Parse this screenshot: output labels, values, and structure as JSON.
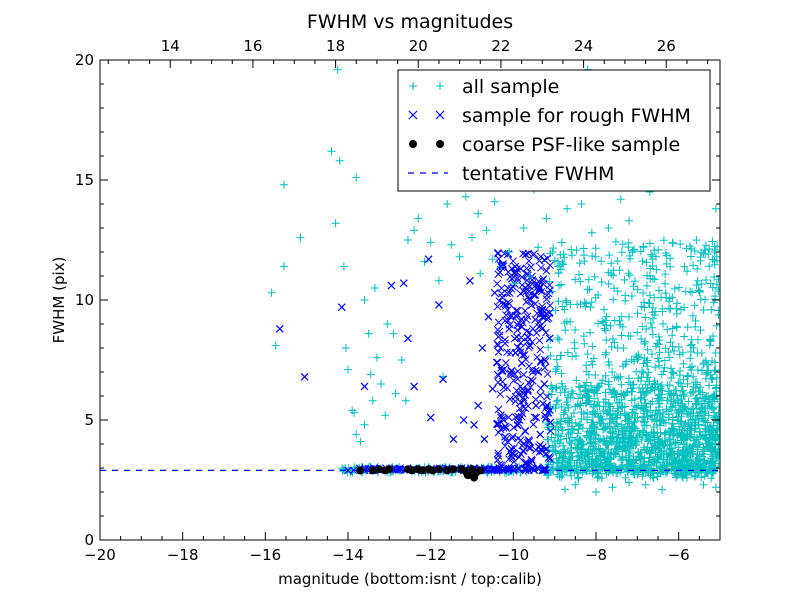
{
  "chart_data": {
    "type": "scatter",
    "title": "FWHM vs magnitudes",
    "xlabel": "magnitude (bottom:isnt / top:calib)",
    "ylabel": "FWHM (pix)",
    "xlim": [
      -20,
      -5
    ],
    "ylim": [
      0,
      20
    ],
    "x_ticks": [
      -20,
      -18,
      -16,
      -14,
      -12,
      -10,
      -8,
      -6
    ],
    "x_tick_labels": [
      "−20",
      "−18",
      "−16",
      "−14",
      "−12",
      "−10",
      "−8",
      "−6"
    ],
    "y_ticks": [
      0,
      5,
      10,
      15,
      20
    ],
    "y_tick_labels": [
      "0",
      "5",
      "10",
      "15",
      "20"
    ],
    "top_axis": {
      "offset": 32.3,
      "ticks": [
        14,
        16,
        18,
        20,
        22,
        24,
        26
      ],
      "tick_labels": [
        "14",
        "16",
        "18",
        "20",
        "22",
        "24",
        "26"
      ]
    },
    "grid": false,
    "legend_position": "top-right",
    "tentative_fwhm": 2.9,
    "series": [
      {
        "name": "all sample",
        "marker": "plus",
        "color": "#00BFBF",
        "points": [
          [
            -15.85,
            10.3
          ],
          [
            -15.75,
            8.1
          ],
          [
            -15.55,
            11.4
          ],
          [
            -15.55,
            14.8
          ],
          [
            -15.15,
            12.6
          ],
          [
            -14.4,
            16.2
          ],
          [
            -14.3,
            13.2
          ],
          [
            -14.25,
            19.6
          ],
          [
            -14.2,
            15.8
          ],
          [
            -14.1,
            11.4
          ],
          [
            -14.05,
            8.0
          ],
          [
            -14.0,
            7.1
          ],
          [
            -13.9,
            5.4
          ],
          [
            -13.85,
            5.3
          ],
          [
            -13.8,
            15.1
          ],
          [
            -13.8,
            4.4
          ],
          [
            -13.7,
            4.1
          ],
          [
            -13.6,
            4.8
          ],
          [
            -13.6,
            10.0
          ],
          [
            -13.5,
            8.6
          ],
          [
            -13.45,
            6.9
          ],
          [
            -13.4,
            5.8
          ],
          [
            -13.35,
            10.5
          ],
          [
            -13.3,
            7.6
          ],
          [
            -13.2,
            6.5
          ],
          [
            -13.1,
            5.2
          ],
          [
            -13.05,
            9.0
          ],
          [
            -12.9,
            8.6
          ],
          [
            -12.85,
            6.1
          ],
          [
            -12.7,
            7.5
          ],
          [
            -12.6,
            5.8
          ],
          [
            -12.55,
            12.5
          ],
          [
            -12.4,
            12.9
          ],
          [
            -12.3,
            13.4
          ],
          [
            -12.15,
            11.6
          ],
          [
            -12.0,
            12.4
          ],
          [
            -11.8,
            10.8
          ],
          [
            -11.7,
            6.8
          ],
          [
            -11.6,
            14.0
          ],
          [
            -11.5,
            12.3
          ],
          [
            -11.3,
            11.8
          ],
          [
            -11.15,
            14.3
          ],
          [
            -11.0,
            12.6
          ],
          [
            -10.85,
            13.6
          ],
          [
            -10.8,
            11.1
          ],
          [
            -10.65,
            12.9
          ],
          [
            -10.5,
            11.7
          ],
          [
            -10.45,
            14.1
          ],
          [
            -10.3,
            11.4
          ],
          [
            -10.1,
            12.0
          ],
          [
            -9.95,
            10.7
          ],
          [
            -9.75,
            13.0
          ],
          [
            -9.6,
            11.0
          ],
          [
            -9.5,
            14.6
          ],
          [
            -9.4,
            12.2
          ],
          [
            -9.2,
            13.4
          ],
          [
            -9.05,
            12.0
          ],
          [
            -8.95,
            15.3
          ],
          [
            -8.7,
            13.8
          ],
          [
            -8.6,
            12.1
          ],
          [
            -8.45,
            16.3
          ],
          [
            -8.35,
            14.0
          ],
          [
            -8.2,
            19.6
          ],
          [
            -8.1,
            12.8
          ],
          [
            -7.95,
            17.0
          ],
          [
            -7.8,
            15.3
          ],
          [
            -7.7,
            13.0
          ],
          [
            -7.55,
            16.9
          ],
          [
            -7.4,
            14.2
          ],
          [
            -7.2,
            13.3
          ],
          [
            -7.0,
            15.9
          ],
          [
            -6.85,
            12.2
          ],
          [
            -6.7,
            14.5
          ],
          [
            -6.55,
            11.8
          ],
          [
            -6.3,
            10.1
          ],
          [
            -6.05,
            8.9
          ],
          [
            -5.9,
            7.8
          ],
          [
            -5.8,
            11.2
          ],
          [
            -5.65,
            6.8
          ],
          [
            -5.5,
            6.2
          ],
          [
            -5.25,
            5.7
          ],
          [
            -5.15,
            9.9
          ],
          [
            -5.1,
            13.8
          ],
          [
            -5.05,
            4.9
          ],
          [
            -8.75,
            2.1
          ],
          [
            -8.5,
            2.3
          ],
          [
            -8.0,
            2.0
          ],
          [
            -7.6,
            2.2
          ],
          [
            -7.2,
            2.4
          ],
          [
            -6.8,
            2.3
          ],
          [
            -6.4,
            2.1
          ],
          [
            -5.9,
            2.6
          ],
          [
            -5.4,
            2.3
          ],
          [
            -5.1,
            2.2
          ]
        ]
      },
      {
        "name": "sample for rough FWHM",
        "marker": "x",
        "color": "#0000FF",
        "points": [
          [
            -15.65,
            8.8
          ],
          [
            -15.05,
            6.8
          ],
          [
            -14.15,
            9.7
          ],
          [
            -13.6,
            6.4
          ],
          [
            -12.95,
            10.6
          ],
          [
            -12.65,
            10.7
          ],
          [
            -12.55,
            8.4
          ],
          [
            -12.4,
            6.4
          ],
          [
            -12.05,
            11.7
          ],
          [
            -12.0,
            5.1
          ],
          [
            -11.8,
            9.8
          ],
          [
            -11.7,
            6.7
          ],
          [
            -11.45,
            4.2
          ],
          [
            -11.2,
            5.0
          ],
          [
            -11.05,
            10.8
          ],
          [
            -10.95,
            4.8
          ],
          [
            -10.85,
            5.6
          ],
          [
            -10.75,
            8.0
          ],
          [
            -10.7,
            4.2
          ],
          [
            -10.6,
            9.3
          ],
          [
            -10.5,
            6.3
          ],
          [
            -10.45,
            10.3
          ],
          [
            -10.4,
            7.4
          ],
          [
            -10.3,
            5.2
          ],
          [
            -10.25,
            11.5
          ],
          [
            -10.2,
            4.3
          ],
          [
            -10.1,
            8.8
          ],
          [
            -10.05,
            6.9
          ],
          [
            -10.0,
            3.6
          ],
          [
            -9.95,
            7.8
          ],
          [
            -9.9,
            10.9
          ],
          [
            -9.85,
            5.0
          ],
          [
            -9.8,
            9.2
          ],
          [
            -9.75,
            4.0
          ],
          [
            -9.7,
            11.9
          ],
          [
            -9.65,
            6.2
          ],
          [
            -9.6,
            8.1
          ],
          [
            -9.55,
            3.3
          ],
          [
            -9.5,
            10.2
          ],
          [
            -9.45,
            5.6
          ],
          [
            -9.4,
            7.0
          ],
          [
            -9.35,
            4.4
          ],
          [
            -9.3,
            9.6
          ],
          [
            -9.25,
            6.5
          ],
          [
            -9.2,
            3.8
          ],
          [
            -9.15,
            5.3
          ],
          [
            -9.12,
            8.4
          ],
          [
            -9.1,
            4.9
          ],
          [
            -14.0,
            2.9
          ],
          [
            -13.4,
            2.9
          ],
          [
            -12.9,
            2.95
          ],
          [
            -12.2,
            2.9
          ],
          [
            -11.6,
            2.95
          ],
          [
            -11.2,
            2.9
          ],
          [
            -10.8,
            2.9
          ],
          [
            -10.4,
            2.92
          ],
          [
            -10.0,
            2.9
          ],
          [
            -9.7,
            2.9
          ],
          [
            -9.5,
            2.92
          ],
          [
            -9.3,
            2.9
          ]
        ]
      },
      {
        "name": "coarse PSF-like sample",
        "marker": "dot",
        "color": "#000000",
        "points": [
          [
            -13.7,
            2.9
          ],
          [
            -13.4,
            2.9
          ],
          [
            -13.25,
            2.95
          ],
          [
            -13.1,
            2.9
          ],
          [
            -13.0,
            2.95
          ],
          [
            -12.55,
            2.95
          ],
          [
            -12.45,
            2.9
          ],
          [
            -12.3,
            2.95
          ],
          [
            -12.2,
            2.9
          ],
          [
            -12.05,
            2.95
          ],
          [
            -11.95,
            2.9
          ],
          [
            -11.8,
            2.95
          ],
          [
            -11.6,
            2.9
          ],
          [
            -11.45,
            2.95
          ],
          [
            -11.25,
            2.95
          ],
          [
            -11.15,
            2.85
          ],
          [
            -11.1,
            2.7
          ],
          [
            -11.0,
            2.95
          ],
          [
            -10.95,
            2.6
          ],
          [
            -10.9,
            2.8
          ],
          [
            -10.8,
            2.9
          ]
        ]
      },
      {
        "name": "tentative FWHM",
        "marker": "dashed-line",
        "color": "#0000FF"
      }
    ]
  }
}
